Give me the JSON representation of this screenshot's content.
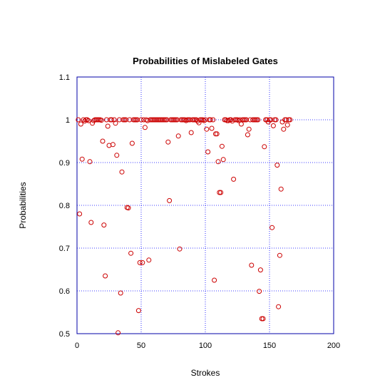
{
  "chart_data": {
    "type": "scatter",
    "title": "Probabilities of Mislabeled Gates",
    "xlabel": "Strokes",
    "ylabel": "Probabilities",
    "xlim": [
      0,
      200
    ],
    "ylim": [
      0.5,
      1.1
    ],
    "xticks": [
      "0",
      "50",
      "100",
      "150",
      "200"
    ],
    "yticks": [
      "0.5",
      "0.6",
      "0.7",
      "0.8",
      "0.9",
      "1",
      "1.1"
    ],
    "grid": true,
    "marker_color": "#cc0000",
    "grid_color": "#0000ff",
    "points": [
      [
        1,
        1.0
      ],
      [
        2,
        0.78
      ],
      [
        3,
        0.99
      ],
      [
        4,
        0.908
      ],
      [
        5,
        1.0
      ],
      [
        6,
        0.997
      ],
      [
        7,
        1.0
      ],
      [
        8,
        1.0
      ],
      [
        9,
        0.998
      ],
      [
        10,
        0.902
      ],
      [
        11,
        0.76
      ],
      [
        12,
        0.992
      ],
      [
        13,
        0.998
      ],
      [
        14,
        1.0
      ],
      [
        15,
        1.0
      ],
      [
        16,
        1.0
      ],
      [
        17,
        1.0
      ],
      [
        18,
        1.0
      ],
      [
        19,
        0.999
      ],
      [
        20,
        0.95
      ],
      [
        21,
        0.754
      ],
      [
        22,
        0.635
      ],
      [
        23,
        1.0
      ],
      [
        24,
        0.985
      ],
      [
        25,
        0.94
      ],
      [
        26,
        1.0
      ],
      [
        27,
        1.0
      ],
      [
        28,
        0.942
      ],
      [
        29,
        1.0
      ],
      [
        30,
        0.992
      ],
      [
        31,
        0.917
      ],
      [
        32,
        0.502
      ],
      [
        33,
        1.0
      ],
      [
        34,
        0.595
      ],
      [
        35,
        0.878
      ],
      [
        36,
        1.0
      ],
      [
        37,
        1.0
      ],
      [
        38,
        1.0
      ],
      [
        39,
        0.795
      ],
      [
        40,
        0.794
      ],
      [
        41,
        1.0
      ],
      [
        42,
        0.688
      ],
      [
        43,
        0.945
      ],
      [
        44,
        1.0
      ],
      [
        45,
        1.0
      ],
      [
        46,
        1.0
      ],
      [
        47,
        1.0
      ],
      [
        48,
        0.554
      ],
      [
        49,
        0.666
      ],
      [
        50,
        1.0
      ],
      [
        51,
        0.666
      ],
      [
        52,
        1.0
      ],
      [
        53,
        0.982
      ],
      [
        54,
        1.0
      ],
      [
        55,
        0.998
      ],
      [
        56,
        0.672
      ],
      [
        57,
        1.0
      ],
      [
        58,
        1.0
      ],
      [
        59,
        1.0
      ],
      [
        60,
        1.0
      ],
      [
        61,
        1.0
      ],
      [
        62,
        1.0
      ],
      [
        63,
        1.0
      ],
      [
        64,
        1.0
      ],
      [
        65,
        1.0
      ],
      [
        66,
        1.0
      ],
      [
        67,
        1.0
      ],
      [
        68,
        1.0
      ],
      [
        69,
        1.0
      ],
      [
        70,
        1.0
      ],
      [
        71,
        0.948
      ],
      [
        72,
        0.811
      ],
      [
        73,
        1.0
      ],
      [
        74,
        1.0
      ],
      [
        75,
        1.0
      ],
      [
        76,
        1.0
      ],
      [
        77,
        1.0
      ],
      [
        78,
        1.0
      ],
      [
        79,
        0.962
      ],
      [
        80,
        0.698
      ],
      [
        81,
        1.0
      ],
      [
        82,
        1.0
      ],
      [
        83,
        1.0
      ],
      [
        84,
        1.0
      ],
      [
        85,
        0.998
      ],
      [
        86,
        1.0
      ],
      [
        87,
        1.0
      ],
      [
        88,
        1.0
      ],
      [
        89,
        0.97
      ],
      [
        90,
        1.0
      ],
      [
        91,
        1.0
      ],
      [
        92,
        1.0
      ],
      [
        93,
        1.0
      ],
      [
        94,
        0.997
      ],
      [
        95,
        0.993
      ],
      [
        96,
        1.0
      ],
      [
        97,
        1.0
      ],
      [
        98,
        1.0
      ],
      [
        99,
        0.998
      ],
      [
        100,
        1.0
      ],
      [
        101,
        0.978
      ],
      [
        102,
        0.925
      ],
      [
        103,
        1.0
      ],
      [
        104,
        1.0
      ],
      [
        105,
        0.98
      ],
      [
        106,
        1.0
      ],
      [
        107,
        0.625
      ],
      [
        108,
        0.967
      ],
      [
        109,
        0.967
      ],
      [
        110,
        0.902
      ],
      [
        111,
        0.83
      ],
      [
        112,
        0.83
      ],
      [
        113,
        0.938
      ],
      [
        114,
        0.907
      ],
      [
        115,
        1.0
      ],
      [
        116,
        1.0
      ],
      [
        117,
        0.998
      ],
      [
        118,
        0.998
      ],
      [
        119,
        1.0
      ],
      [
        120,
        1.0
      ],
      [
        121,
        0.997
      ],
      [
        122,
        0.861
      ],
      [
        123,
        1.0
      ],
      [
        124,
        1.0
      ],
      [
        125,
        1.0
      ],
      [
        126,
        0.998
      ],
      [
        127,
        1.0
      ],
      [
        128,
        0.99
      ],
      [
        129,
        1.0
      ],
      [
        130,
        1.0
      ],
      [
        131,
        1.0
      ],
      [
        132,
        1.0
      ],
      [
        133,
        0.965
      ],
      [
        134,
        0.978
      ],
      [
        135,
        1.0
      ],
      [
        136,
        0.66
      ],
      [
        137,
        1.0
      ],
      [
        138,
        1.0
      ],
      [
        139,
        1.0
      ],
      [
        140,
        1.0
      ],
      [
        141,
        1.0
      ],
      [
        142,
        0.599
      ],
      [
        143,
        0.649
      ],
      [
        144,
        0.535
      ],
      [
        145,
        0.535
      ],
      [
        146,
        0.937
      ],
      [
        147,
        1.0
      ],
      [
        148,
        1.0
      ],
      [
        149,
        0.995
      ],
      [
        150,
        1.0
      ],
      [
        151,
        1.0
      ],
      [
        152,
        0.748
      ],
      [
        153,
        0.986
      ],
      [
        154,
        1.0
      ],
      [
        155,
        1.0
      ],
      [
        156,
        0.894
      ],
      [
        157,
        0.563
      ],
      [
        158,
        0.683
      ],
      [
        159,
        0.838
      ],
      [
        160,
        0.995
      ],
      [
        161,
        0.978
      ],
      [
        162,
        1.0
      ],
      [
        163,
        1.0
      ],
      [
        164,
        0.988
      ],
      [
        165,
        1.0
      ],
      [
        166,
        1.0
      ]
    ]
  }
}
